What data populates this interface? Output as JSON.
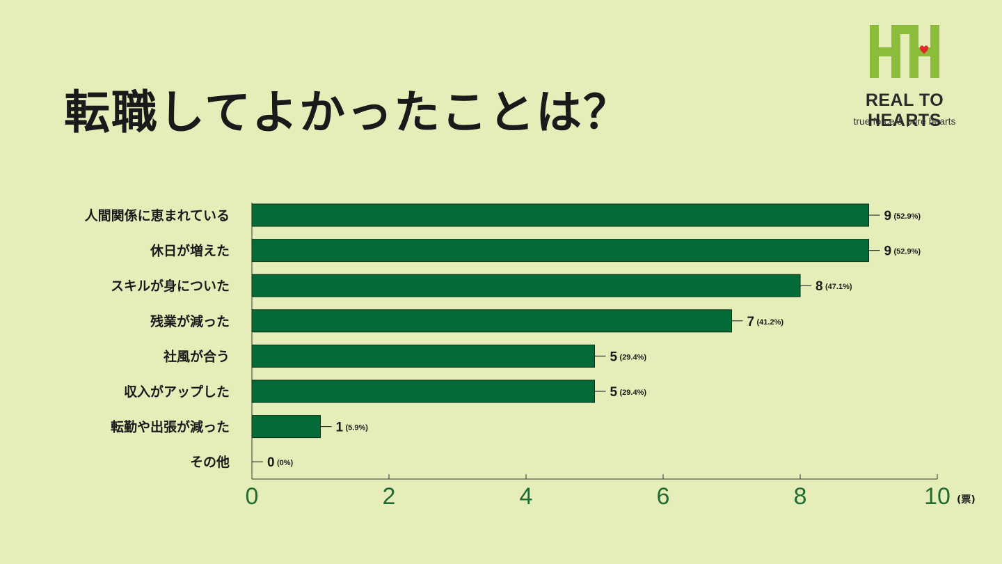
{
  "page": {
    "title": "転職してよかったことは？"
  },
  "brand": {
    "name": "REAL TO HEARTS",
    "tagline": "true force & pure hearts",
    "colors": {
      "mark": "#8bbd3a",
      "heart": "#e32526"
    }
  },
  "chart_data": {
    "type": "bar",
    "orientation": "horizontal",
    "categories": [
      "人間関係に恵まれている",
      "休日が増えた",
      "スキルが身についた",
      "残業が減った",
      "社風が合う",
      "収入がアップした",
      "転勤や出張が減った",
      "その他"
    ],
    "values": [
      9,
      9,
      8,
      7,
      5,
      5,
      1,
      0
    ],
    "value_labels": [
      "9",
      "9",
      "8",
      "7",
      "5",
      "5",
      "1",
      "0"
    ],
    "percent_labels": [
      "(52.9%)",
      "(52.9%)",
      "(47.1%)",
      "(41.2%)",
      "(29.4%)",
      "(29.4%)",
      "(5.9%)",
      "(0%)"
    ],
    "xlim": [
      0,
      10
    ],
    "xticks": [
      "0",
      "2",
      "4",
      "6",
      "8",
      "10"
    ],
    "xlabel": "(票)",
    "bar_color": "#046a38",
    "tick_color": "#1f6b32",
    "grid": false
  }
}
